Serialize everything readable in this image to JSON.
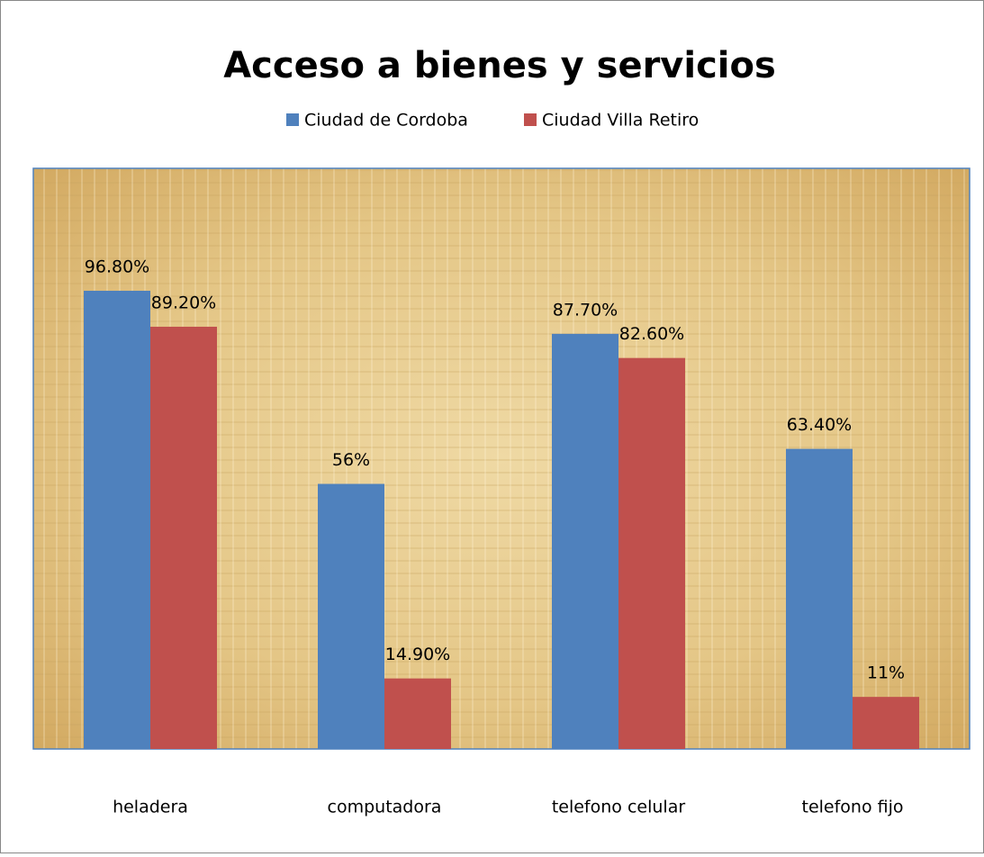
{
  "chart_data": {
    "type": "bar",
    "title": "Acceso a bienes y servicios",
    "categories": [
      "heladera",
      "computadora",
      "telefono celular",
      "telefono fijo"
    ],
    "series": [
      {
        "name": "Ciudad de Cordoba",
        "color": "#4f81bd",
        "values": [
          96.8,
          56,
          87.7,
          63.4
        ],
        "value_labels": [
          "96.80%",
          "56%",
          "87.70%",
          "63.40%"
        ]
      },
      {
        "name": "Ciudad Villa Retiro",
        "color": "#c0504d",
        "values": [
          89.2,
          14.9,
          82.6,
          11
        ],
        "value_labels": [
          "89.20%",
          "14.90%",
          "82.60%",
          "11%"
        ]
      }
    ],
    "ylim": [
      0,
      120
    ],
    "legend": "top"
  }
}
